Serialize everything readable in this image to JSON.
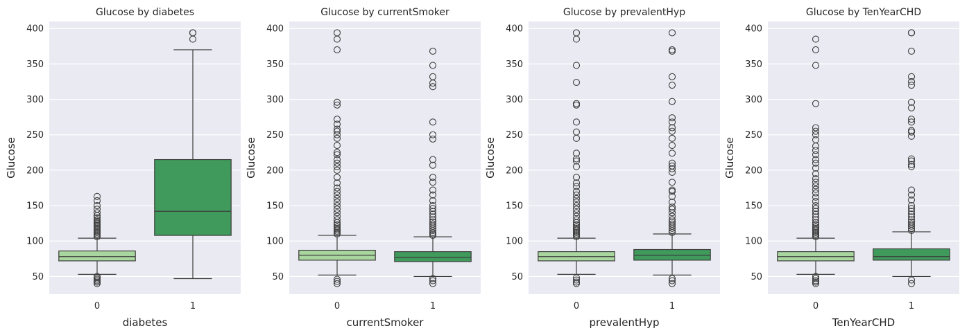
{
  "chart_data": [
    {
      "type": "box",
      "title": "Glucose by diabetes",
      "xlabel": "diabetes",
      "ylabel": "Glucose",
      "categories": [
        "0",
        "1"
      ],
      "ylim": [
        25,
        410
      ],
      "yticks": [
        50,
        100,
        150,
        200,
        250,
        300,
        350,
        400
      ],
      "boxes": [
        {
          "category": "0",
          "color": "#a9d69e",
          "whisker_low": 53,
          "q1": 72,
          "median": 78,
          "q3": 86,
          "whisker_high": 104,
          "outliers": [
            40,
            42,
            44,
            46,
            48,
            50,
            106,
            108,
            110,
            112,
            114,
            116,
            118,
            120,
            122,
            124,
            126,
            128,
            130,
            133,
            136,
            140,
            145,
            150,
            157,
            163
          ]
        },
        {
          "category": "1",
          "color": "#3f9a5c",
          "whisker_low": 47,
          "q1": 108,
          "median": 142,
          "q3": 215,
          "whisker_high": 370,
          "outliers": [
            385,
            394,
            394
          ]
        }
      ]
    },
    {
      "type": "box",
      "title": "Glucose by currentSmoker",
      "xlabel": "currentSmoker",
      "ylabel": "Glucose",
      "categories": [
        "0",
        "1"
      ],
      "ylim": [
        25,
        410
      ],
      "yticks": [
        50,
        100,
        150,
        200,
        250,
        300,
        350,
        400
      ],
      "boxes": [
        {
          "category": "0",
          "color": "#a9d69e",
          "whisker_low": 52,
          "q1": 73,
          "median": 80,
          "q3": 87,
          "whisker_high": 108,
          "outliers": [
            40,
            43,
            46,
            110,
            112,
            114,
            116,
            118,
            120,
            123,
            126,
            130,
            135,
            140,
            145,
            150,
            155,
            160,
            165,
            170,
            175,
            182,
            190,
            200,
            205,
            210,
            215,
            222,
            225,
            235,
            245,
            250,
            255,
            258,
            265,
            272,
            292,
            296,
            370,
            385,
            394
          ]
        },
        {
          "category": "1",
          "color": "#3f9a5c",
          "whisker_low": 50,
          "q1": 71,
          "median": 77,
          "q3": 85,
          "whisker_high": 106,
          "outliers": [
            40,
            44,
            47,
            108,
            110,
            112,
            115,
            118,
            121,
            124,
            127,
            130,
            134,
            138,
            142,
            146,
            150,
            157,
            165,
            172,
            183,
            190,
            207,
            215,
            244,
            250,
            268,
            318,
            323,
            332,
            348,
            368
          ]
        }
      ]
    },
    {
      "type": "box",
      "title": "Glucose by prevalentHyp",
      "xlabel": "prevalentHyp",
      "ylabel": "Glucose",
      "categories": [
        "0",
        "1"
      ],
      "ylim": [
        25,
        410
      ],
      "yticks": [
        50,
        100,
        150,
        200,
        250,
        300,
        350,
        400
      ],
      "boxes": [
        {
          "category": "0",
          "color": "#a9d69e",
          "whisker_low": 53,
          "q1": 72,
          "median": 78,
          "q3": 85,
          "whisker_high": 104,
          "outliers": [
            40,
            42,
            45,
            48,
            106,
            108,
            110,
            112,
            114,
            116,
            118,
            120,
            123,
            126,
            130,
            135,
            140,
            145,
            150,
            155,
            160,
            165,
            170,
            177,
            182,
            190,
            205,
            213,
            216,
            224,
            245,
            254,
            268,
            292,
            294,
            324,
            348,
            385,
            394
          ]
        },
        {
          "category": "1",
          "color": "#3f9a5c",
          "whisker_low": 52,
          "q1": 73,
          "median": 80,
          "q3": 88,
          "whisker_high": 110,
          "outliers": [
            40,
            44,
            47,
            112,
            115,
            118,
            121,
            124,
            127,
            130,
            135,
            140,
            145,
            148,
            155,
            163,
            170,
            172,
            183,
            197,
            202,
            206,
            210,
            224,
            235,
            245,
            255,
            260,
            268,
            274,
            297,
            320,
            332,
            368,
            370,
            394
          ]
        }
      ]
    },
    {
      "type": "box",
      "title": "Glucose by TenYearCHD",
      "xlabel": "TenYearCHD",
      "ylabel": "Glucose",
      "categories": [
        "0",
        "1"
      ],
      "ylim": [
        25,
        410
      ],
      "yticks": [
        50,
        100,
        150,
        200,
        250,
        300,
        350,
        400
      ],
      "boxes": [
        {
          "category": "0",
          "color": "#a9d69e",
          "whisker_low": 53,
          "q1": 72,
          "median": 78,
          "q3": 85,
          "whisker_high": 104,
          "outliers": [
            40,
            42,
            44,
            47,
            50,
            106,
            108,
            110,
            112,
            114,
            116,
            118,
            120,
            123,
            126,
            130,
            134,
            138,
            142,
            146,
            150,
            156,
            162,
            168,
            173,
            178,
            183,
            188,
            195,
            203,
            210,
            215,
            222,
            228,
            234,
            243,
            250,
            255,
            260,
            294,
            348,
            370,
            385
          ]
        },
        {
          "category": "1",
          "color": "#3f9a5c",
          "whisker_low": 50,
          "q1": 73,
          "median": 78,
          "q3": 89,
          "whisker_high": 113,
          "outliers": [
            40,
            45,
            115,
            118,
            121,
            124,
            127,
            130,
            134,
            138,
            142,
            146,
            150,
            158,
            165,
            172,
            205,
            208,
            213,
            216,
            248,
            254,
            256,
            268,
            272,
            288,
            296,
            320,
            325,
            332,
            368,
            394,
            394
          ]
        }
      ]
    }
  ]
}
